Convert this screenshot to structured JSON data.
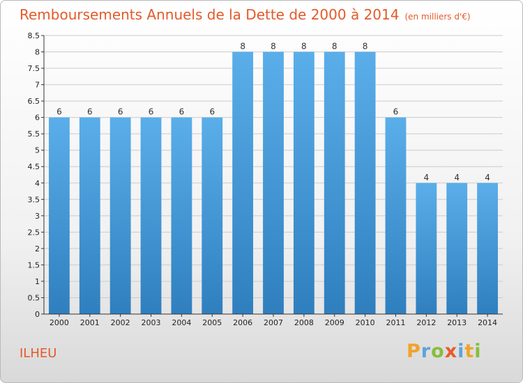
{
  "header": {
    "title": "Remboursements Annuels de la Dette de 2000 à 2014",
    "subtitle": "(en milliers d'€)"
  },
  "footer": {
    "place": "ILHEU",
    "logo_letters": [
      "P",
      "r",
      "o",
      "x",
      "i",
      "t",
      "i"
    ]
  },
  "colors": {
    "bar_top": "#5aaee9",
    "bar_bottom": "#2f7fbf",
    "title": "#e45a2a",
    "grid": "#cccccc"
  },
  "chart_data": {
    "type": "bar",
    "categories": [
      "2000",
      "2001",
      "2002",
      "2003",
      "2004",
      "2005",
      "2006",
      "2007",
      "2008",
      "2009",
      "2010",
      "2011",
      "2012",
      "2013",
      "2014"
    ],
    "values": [
      6,
      6,
      6,
      6,
      6,
      6,
      8,
      8,
      8,
      8,
      8,
      6,
      4,
      4,
      4
    ],
    "data_labels": [
      "6",
      "6",
      "6",
      "6",
      "6",
      "6",
      "8",
      "8",
      "8",
      "8",
      "8",
      "6",
      "4",
      "4",
      "4"
    ],
    "y_ticks": [
      0,
      0.5,
      1,
      1.5,
      2,
      2.5,
      3,
      3.5,
      4,
      4.5,
      5,
      5.5,
      6,
      6.5,
      7,
      7.5,
      8,
      8.5
    ],
    "y_tick_labels": [
      "0",
      "0.5",
      "1",
      "1.5",
      "2",
      "2.5",
      "3",
      "3.5",
      "4",
      "4.5",
      "5",
      "5.5",
      "6",
      "6.5",
      "7",
      "7.5",
      "8",
      "8.5"
    ],
    "ylim": [
      0,
      8.5
    ],
    "grid": true
  }
}
